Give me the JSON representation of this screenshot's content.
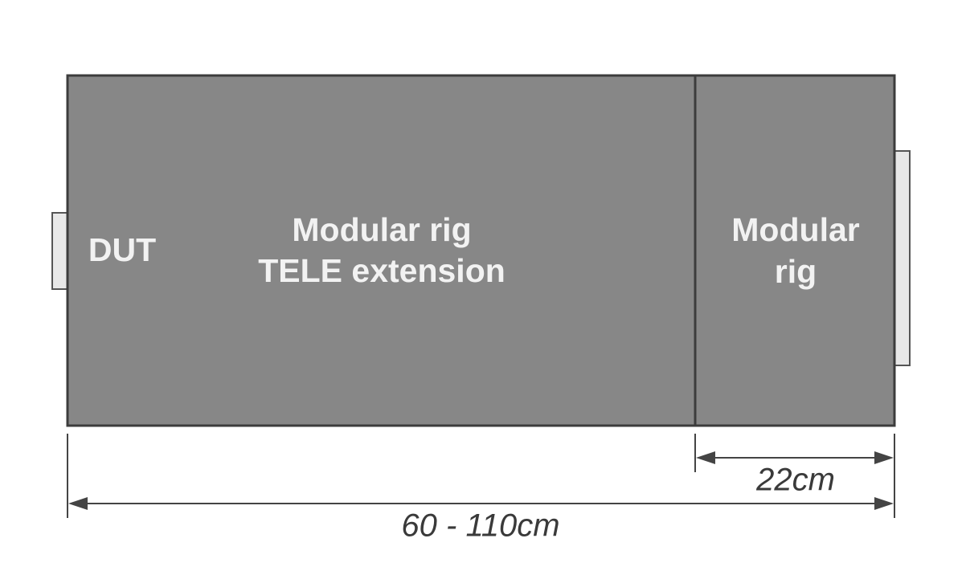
{
  "nodes": [
    {
      "label": [
        "DUT"
      ]
    },
    {
      "label": [
        "Modular rig",
        "TELE extension"
      ]
    },
    {
      "label": [
        "Modular",
        "rig"
      ]
    }
  ],
  "dimensions": [
    {
      "label": "22cm"
    },
    {
      "label": "60 - 110cm"
    }
  ]
}
